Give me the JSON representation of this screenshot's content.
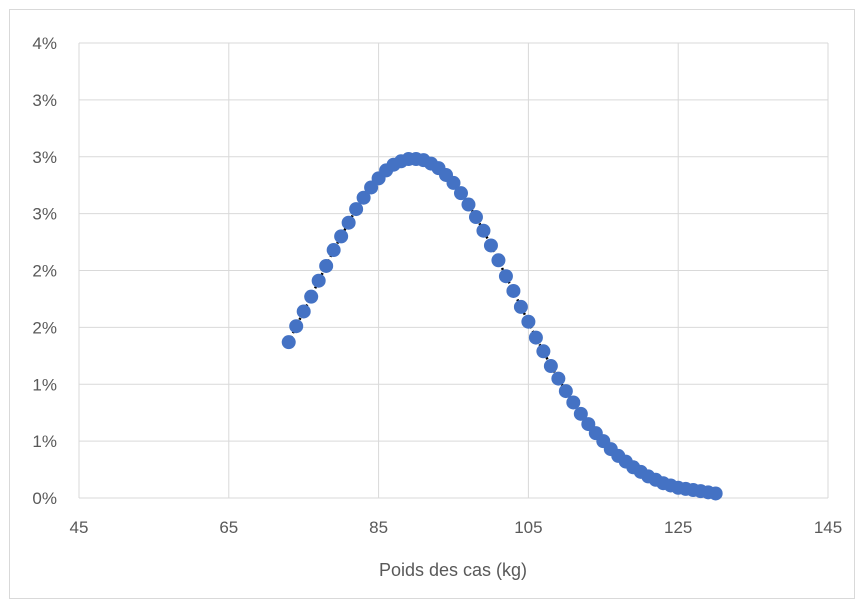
{
  "chart_data": {
    "type": "scatter",
    "title": "",
    "xlabel": "Poids des cas (kg)",
    "ylabel": "",
    "xlim": [
      45,
      145
    ],
    "ylim": [
      0,
      0.04
    ],
    "x_ticks": [
      45,
      65,
      85,
      105,
      125,
      145
    ],
    "x_tick_labels": [
      "45",
      "65",
      "85",
      "105",
      "125",
      "145"
    ],
    "y_ticks": [
      0,
      0.005,
      0.01,
      0.015,
      0.02,
      0.025,
      0.03,
      0.035,
      0.04
    ],
    "y_tick_labels": [
      "0%",
      "1%",
      "1%",
      "2%",
      "2%",
      "3%",
      "3%",
      "3%",
      "4%"
    ],
    "grid": true,
    "series": [
      {
        "marker_color": "#4472c4",
        "line_color": "#000000",
        "line_style": "dotted",
        "points": [
          [
            73,
            0.0137
          ],
          [
            74,
            0.0151
          ],
          [
            75,
            0.0164
          ],
          [
            76,
            0.0177
          ],
          [
            77,
            0.0191
          ],
          [
            78,
            0.0204
          ],
          [
            79,
            0.0218
          ],
          [
            80,
            0.023
          ],
          [
            81,
            0.0242
          ],
          [
            82,
            0.0254
          ],
          [
            83,
            0.0264
          ],
          [
            84,
            0.0273
          ],
          [
            85,
            0.0281
          ],
          [
            86,
            0.0288
          ],
          [
            87,
            0.0293
          ],
          [
            88,
            0.0296
          ],
          [
            89,
            0.0298
          ],
          [
            90,
            0.0298
          ],
          [
            91,
            0.0297
          ],
          [
            92,
            0.0294
          ],
          [
            93,
            0.029
          ],
          [
            94,
            0.0284
          ],
          [
            95,
            0.0277
          ],
          [
            96,
            0.0268
          ],
          [
            97,
            0.0258
          ],
          [
            98,
            0.0247
          ],
          [
            99,
            0.0235
          ],
          [
            100,
            0.0222
          ],
          [
            101,
            0.0209
          ],
          [
            102,
            0.0195
          ],
          [
            103,
            0.0182
          ],
          [
            104,
            0.0168
          ],
          [
            105,
            0.0155
          ],
          [
            106,
            0.0141
          ],
          [
            107,
            0.0129
          ],
          [
            108,
            0.0116
          ],
          [
            109,
            0.0105
          ],
          [
            110,
            0.0094
          ],
          [
            111,
            0.0084
          ],
          [
            112,
            0.0074
          ],
          [
            113,
            0.0065
          ],
          [
            114,
            0.0057
          ],
          [
            115,
            0.005
          ],
          [
            116,
            0.0043
          ],
          [
            117,
            0.0037
          ],
          [
            118,
            0.0032
          ],
          [
            119,
            0.0027
          ],
          [
            120,
            0.0023
          ],
          [
            121,
            0.0019
          ],
          [
            122,
            0.0016
          ],
          [
            123,
            0.0013
          ],
          [
            124,
            0.0011
          ],
          [
            125,
            0.0009
          ],
          [
            126,
            0.0008
          ],
          [
            127,
            0.0007
          ],
          [
            128,
            0.0006
          ],
          [
            129,
            0.0005
          ],
          [
            130,
            0.0004
          ]
        ]
      }
    ]
  }
}
